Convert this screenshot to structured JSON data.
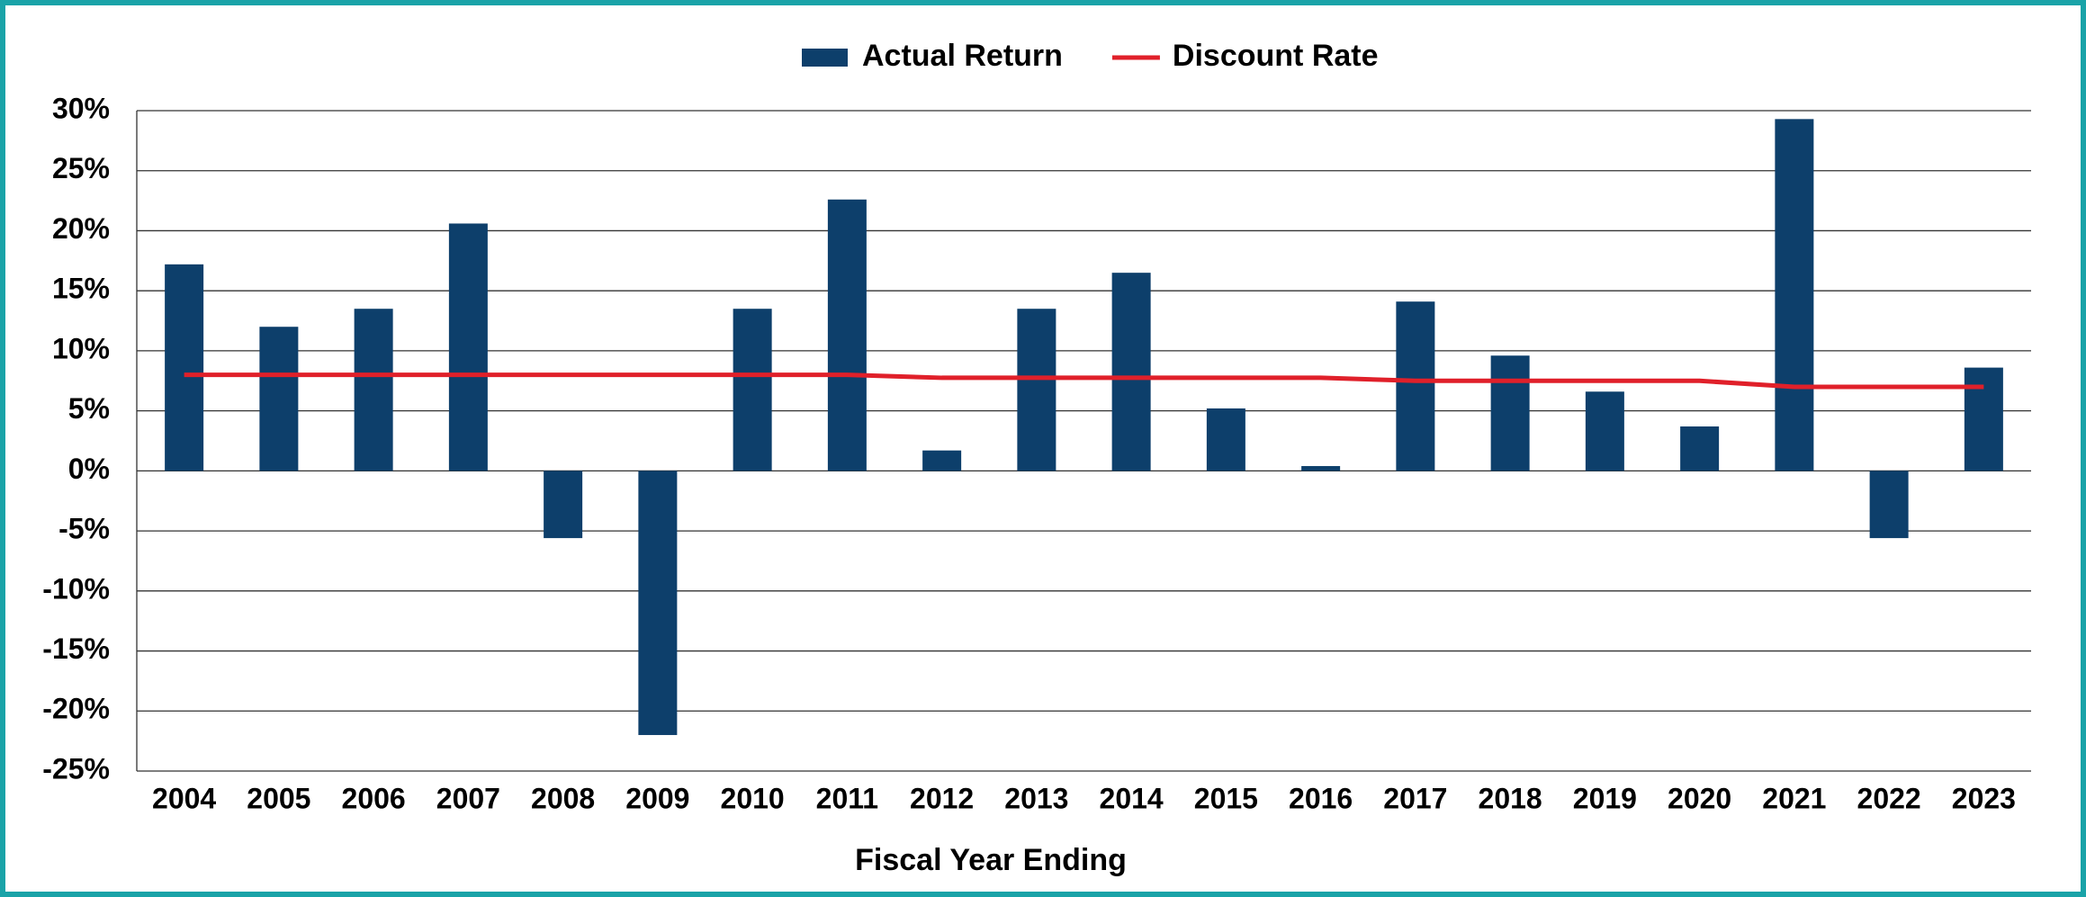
{
  "chart_data": {
    "type": "bar",
    "categories": [
      "2004",
      "2005",
      "2006",
      "2007",
      "2008",
      "2009",
      "2010",
      "2011",
      "2012",
      "2013",
      "2014",
      "2015",
      "2016",
      "2017",
      "2018",
      "2019",
      "2020",
      "2021",
      "2022",
      "2023"
    ],
    "series": [
      {
        "name": "Actual Return",
        "type": "bar",
        "color": "#0d3f6b",
        "values": [
          17.2,
          12.0,
          13.5,
          20.6,
          -5.6,
          -22.0,
          13.5,
          22.6,
          1.7,
          13.5,
          16.5,
          5.2,
          0.4,
          14.1,
          9.6,
          6.6,
          3.7,
          29.3,
          -5.6,
          8.6
        ]
      },
      {
        "name": "Discount Rate",
        "type": "line",
        "color": "#e0202a",
        "values": [
          8.0,
          8.0,
          8.0,
          8.0,
          8.0,
          8.0,
          8.0,
          8.0,
          7.75,
          7.75,
          7.75,
          7.75,
          7.75,
          7.5,
          7.5,
          7.5,
          7.5,
          7.0,
          7.0,
          7.0
        ]
      }
    ],
    "x_label": "Fiscal Year Ending",
    "ylim": [
      -25,
      30
    ],
    "yticks": [
      {
        "value": -25,
        "label": "-25%"
      },
      {
        "value": -20,
        "label": "-20%"
      },
      {
        "value": -15,
        "label": "-15%"
      },
      {
        "value": -10,
        "label": "-10%"
      },
      {
        "value": -5,
        "label": "-5%"
      },
      {
        "value": 0,
        "label": "0%"
      },
      {
        "value": 5,
        "label": "5%"
      },
      {
        "value": 10,
        "label": "10%"
      },
      {
        "value": 15,
        "label": "15%"
      },
      {
        "value": 20,
        "label": "20%"
      },
      {
        "value": 25,
        "label": "25%"
      },
      {
        "value": 30,
        "label": "30%"
      }
    ],
    "grid": true,
    "legend": "top"
  }
}
